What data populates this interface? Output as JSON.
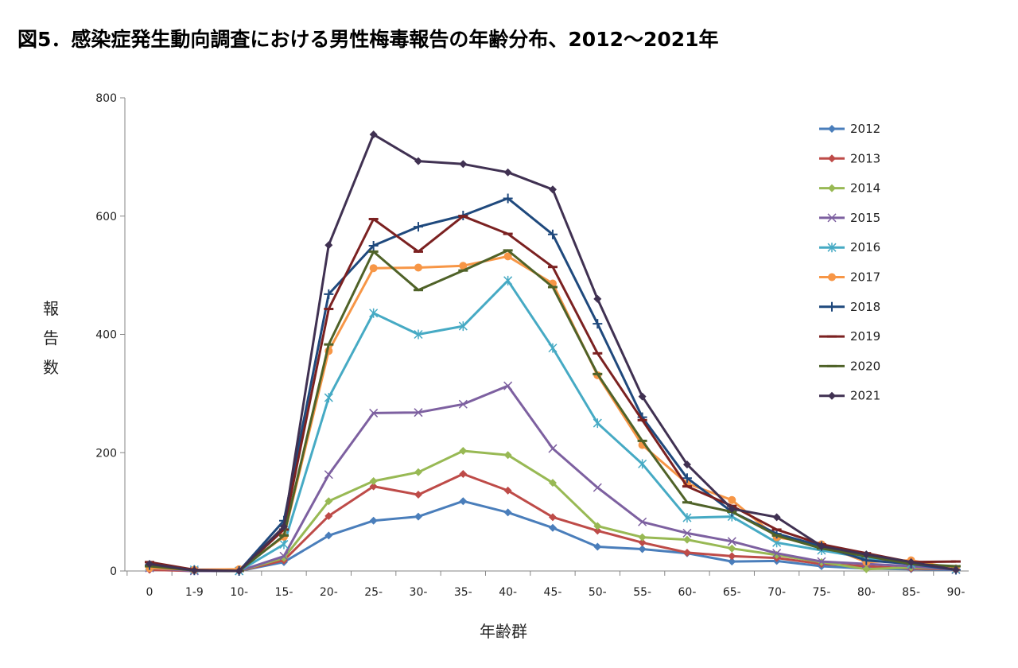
{
  "chart_data": {
    "type": "line",
    "title": "図5．感染症発生動向調査における男性梅毒報告の年齢分布、2012～2021年",
    "xlabel": "年齢群",
    "ylabel": "報告数",
    "ylim": [
      0,
      800
    ],
    "yticks": [
      0,
      200,
      400,
      600,
      800
    ],
    "categories": [
      "0",
      "1-9",
      "10-",
      "15-",
      "20-",
      "25-",
      "30-",
      "35-",
      "40-",
      "45-",
      "50-",
      "55-",
      "60-",
      "65-",
      "70-",
      "75-",
      "80-",
      "85-",
      "90-"
    ],
    "legend_position": "right",
    "series": [
      {
        "name": "2012",
        "color": "#4a7ebb",
        "marker": "diamond",
        "values": [
          3,
          0,
          0,
          15,
          60,
          85,
          92,
          118,
          99,
          73,
          41,
          37,
          30,
          16,
          17,
          8,
          4,
          3,
          2
        ]
      },
      {
        "name": "2013",
        "color": "#be4b48",
        "marker": "diamond",
        "values": [
          2,
          0,
          0,
          18,
          93,
          143,
          129,
          164,
          136,
          91,
          68,
          48,
          31,
          25,
          22,
          12,
          8,
          4,
          3
        ]
      },
      {
        "name": "2014",
        "color": "#98b954",
        "marker": "diamond",
        "values": [
          10,
          2,
          0,
          22,
          118,
          152,
          167,
          203,
          196,
          149,
          76,
          57,
          53,
          38,
          27,
          15,
          3,
          6,
          3
        ]
      },
      {
        "name": "2015",
        "color": "#7d60a0",
        "marker": "x",
        "values": [
          5,
          0,
          0,
          25,
          163,
          267,
          268,
          282,
          313,
          207,
          141,
          83,
          64,
          50,
          30,
          16,
          12,
          8,
          2
        ]
      },
      {
        "name": "2016",
        "color": "#46aac4",
        "marker": "star",
        "values": [
          8,
          2,
          0,
          45,
          293,
          436,
          400,
          414,
          491,
          377,
          250,
          181,
          90,
          92,
          48,
          35,
          22,
          12,
          3
        ]
      },
      {
        "name": "2017",
        "color": "#f79646",
        "marker": "circle",
        "values": [
          5,
          2,
          3,
          58,
          372,
          512,
          513,
          516,
          532,
          486,
          331,
          213,
          148,
          120,
          57,
          45,
          15,
          18,
          4
        ]
      },
      {
        "name": "2018",
        "color": "#1f497d",
        "marker": "plus",
        "values": [
          10,
          1,
          0,
          85,
          468,
          550,
          582,
          601,
          630,
          569,
          418,
          260,
          157,
          100,
          63,
          42,
          18,
          12,
          2
        ]
      },
      {
        "name": "2019",
        "color": "#7b2121",
        "marker": "line",
        "values": [
          15,
          2,
          0,
          70,
          443,
          595,
          540,
          600,
          570,
          514,
          368,
          255,
          143,
          110,
          70,
          45,
          30,
          15,
          16
        ]
      },
      {
        "name": "2020",
        "color": "#4f6228",
        "marker": "line",
        "values": [
          8,
          1,
          0,
          60,
          383,
          540,
          475,
          508,
          542,
          480,
          333,
          220,
          116,
          100,
          60,
          38,
          25,
          12,
          8
        ]
      },
      {
        "name": "2021",
        "color": "#403152",
        "marker": "diamond",
        "values": [
          12,
          1,
          0,
          75,
          551,
          738,
          693,
          688,
          674,
          645,
          460,
          295,
          180,
          105,
          91,
          42,
          28,
          15,
          2
        ]
      }
    ]
  }
}
